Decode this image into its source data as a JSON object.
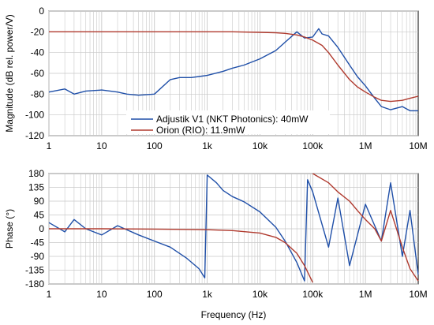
{
  "colors": {
    "blue": "#1f4fa8",
    "red": "#b03a2e",
    "pink": "#f2b8c6",
    "grid": "#c8c8c8",
    "axis": "#000000"
  },
  "chart_data": [
    {
      "type": "line",
      "x_scale": "log",
      "xlim": [
        1,
        10000000
      ],
      "ylim": [
        -120,
        0
      ],
      "ylabel": "Magnitude (dB rel. power/V)",
      "xlabel": "",
      "grid": true,
      "legend_position": "lower-left",
      "x_tick_labels": [
        "1",
        "10",
        "100",
        "1k",
        "10k",
        "100k",
        "1M",
        "10M"
      ],
      "y_tick_labels": [
        "0",
        "-20",
        "-40",
        "-60",
        "-80",
        "-100",
        "-120"
      ],
      "series": [
        {
          "name": "Adjustik V1 (NKT Photonics): 40mW",
          "color": "#1f4fa8",
          "points": [
            [
              1,
              -78
            ],
            [
              2,
              -75
            ],
            [
              3,
              -80
            ],
            [
              5,
              -77
            ],
            [
              10,
              -76
            ],
            [
              20,
              -78
            ],
            [
              30,
              -80
            ],
            [
              50,
              -81
            ],
            [
              100,
              -80
            ],
            [
              200,
              -66
            ],
            [
              300,
              -64
            ],
            [
              500,
              -64
            ],
            [
              1000,
              -62
            ],
            [
              2000,
              -58
            ],
            [
              3000,
              -55
            ],
            [
              5000,
              -52
            ],
            [
              10000,
              -46
            ],
            [
              20000,
              -38
            ],
            [
              30000,
              -30
            ],
            [
              50000,
              -20
            ],
            [
              70000,
              -26
            ],
            [
              100000,
              -25
            ],
            [
              130000,
              -17
            ],
            [
              150000,
              -22
            ],
            [
              200000,
              -24
            ],
            [
              300000,
              -35
            ],
            [
              500000,
              -52
            ],
            [
              700000,
              -63
            ],
            [
              1000000,
              -72
            ],
            [
              1500000,
              -84
            ],
            [
              2000000,
              -92
            ],
            [
              3000000,
              -95
            ],
            [
              5000000,
              -92
            ],
            [
              7000000,
              -96
            ],
            [
              10000000,
              -96
            ]
          ]
        },
        {
          "name": "Orion (RIO): 11.9mW",
          "color": "#b03a2e",
          "points": [
            [
              1,
              -20
            ],
            [
              10,
              -20
            ],
            [
              100,
              -20
            ],
            [
              1000,
              -20
            ],
            [
              3000,
              -20
            ],
            [
              10000,
              -20.5
            ],
            [
              20000,
              -21
            ],
            [
              30000,
              -21.5
            ],
            [
              50000,
              -23
            ],
            [
              70000,
              -25
            ],
            [
              100000,
              -28
            ],
            [
              150000,
              -33
            ],
            [
              200000,
              -40
            ],
            [
              300000,
              -52
            ],
            [
              500000,
              -66
            ],
            [
              700000,
              -73
            ],
            [
              1000000,
              -78
            ],
            [
              1500000,
              -83
            ],
            [
              2000000,
              -86
            ],
            [
              3000000,
              -87
            ],
            [
              5000000,
              -86
            ],
            [
              7000000,
              -84
            ],
            [
              10000000,
              -82
            ]
          ]
        }
      ]
    },
    {
      "type": "line",
      "x_scale": "log",
      "xlim": [
        1,
        10000000
      ],
      "ylim": [
        -180,
        180
      ],
      "ylabel": "Phase (°)",
      "xlabel": "Frequency (Hz)",
      "grid": true,
      "x_tick_labels": [
        "1",
        "10",
        "100",
        "1k",
        "10k",
        "100k",
        "1M",
        "10M"
      ],
      "y_tick_labels": [
        "180",
        "135",
        "90",
        "45",
        "0",
        "-45",
        "-90",
        "-135",
        "-180"
      ],
      "series": [
        {
          "name": "Adjustik V1 (NKT Photonics): 40mW",
          "color": "#1f4fa8",
          "points": [
            [
              1,
              20
            ],
            [
              2,
              -10
            ],
            [
              3,
              30
            ],
            [
              5,
              0
            ],
            [
              10,
              -20
            ],
            [
              20,
              10
            ],
            [
              50,
              -20
            ],
            [
              100,
              -40
            ],
            [
              200,
              -60
            ],
            [
              400,
              -95
            ],
            [
              700,
              -130
            ],
            [
              900,
              -160
            ],
            [
              1000,
              175
            ],
            [
              1500,
              150
            ],
            [
              2000,
              125
            ],
            [
              3000,
              105
            ],
            [
              5000,
              88
            ],
            [
              10000,
              55
            ],
            [
              20000,
              5
            ],
            [
              30000,
              -40
            ],
            [
              50000,
              -110
            ],
            [
              70000,
              -170
            ],
            [
              80000,
              160
            ],
            [
              100000,
              120
            ],
            [
              200000,
              -60
            ],
            [
              300000,
              100
            ],
            [
              500000,
              -120
            ],
            [
              1000000,
              80
            ],
            [
              2000000,
              -40
            ],
            [
              3000000,
              150
            ],
            [
              5000000,
              -90
            ],
            [
              7000000,
              60
            ],
            [
              10000000,
              -150
            ]
          ]
        },
        {
          "name": "Orion (RIO): 11.9mW",
          "color": "#b03a2e",
          "points": [
            [
              1,
              0
            ],
            [
              10,
              0
            ],
            [
              100,
              -1
            ],
            [
              1000,
              -3
            ],
            [
              3000,
              -6
            ],
            [
              10000,
              -14
            ],
            [
              20000,
              -28
            ],
            [
              30000,
              -45
            ],
            [
              50000,
              -80
            ],
            [
              70000,
              -120
            ],
            [
              100000,
              -175
            ],
            [
              100001,
              180
            ],
            [
              200000,
              150
            ],
            [
              300000,
              120
            ],
            [
              500000,
              90
            ],
            [
              700000,
              60
            ],
            [
              1000000,
              30
            ],
            [
              1500000,
              0
            ],
            [
              2000000,
              -40
            ],
            [
              3000000,
              60
            ],
            [
              5000000,
              -60
            ],
            [
              7000000,
              -130
            ],
            [
              10000000,
              -170
            ]
          ]
        }
      ]
    }
  ]
}
